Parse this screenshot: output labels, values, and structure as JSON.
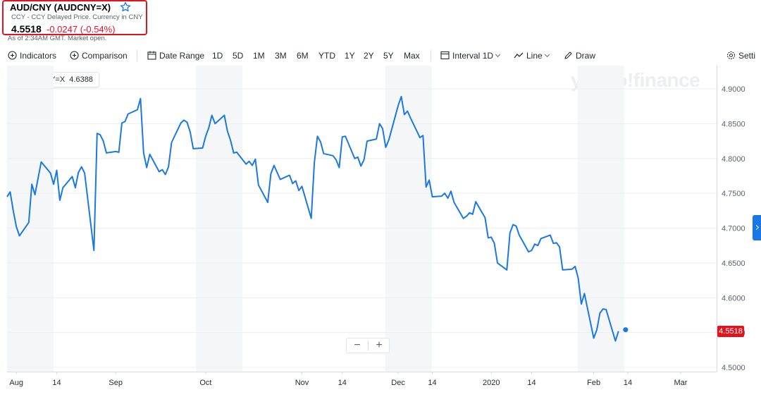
{
  "header": {
    "title": "AUD/CNY (AUDCNY=X)",
    "subtitle": "CCY - CCY Delayed Price. Currency in CNY",
    "price": "4.5518",
    "change": "-0.0247 (-0.54%)",
    "market_status": "As of 2:34AM GMT. Market open."
  },
  "toolbar": {
    "indicators": "Indicators",
    "comparison": "Comparison",
    "date_range": "Date Range",
    "ranges": [
      "1D",
      "5D",
      "1M",
      "3M",
      "6M",
      "YTD",
      "1Y",
      "2Y",
      "5Y",
      "Max"
    ],
    "interval_label": "Interval",
    "interval_value": "1D",
    "chart_type": "Line",
    "draw": "Draw",
    "settings": "Setti"
  },
  "legend": {
    "label": "AUDCNY=X",
    "value": "4.6388"
  },
  "watermark": "yahoo!finance",
  "current_price_flag": "4.5518",
  "zoom": {
    "minus": "−",
    "plus": "+"
  },
  "colors": {
    "line": "#1a78e6",
    "accent_red": "#e0141e",
    "shade": "#f5f6f7"
  },
  "chart_data": {
    "type": "line",
    "title": "",
    "xlabel": "",
    "ylabel": "",
    "ylim": [
      4.5,
      4.9
    ],
    "y_ticks": [
      "4.9000",
      "4.8500",
      "4.8000",
      "4.7500",
      "4.7000",
      "4.6500",
      "4.6000",
      "4.5500",
      "4.5000"
    ],
    "y_tick_values": [
      4.9,
      4.85,
      4.8,
      4.75,
      4.7,
      4.65,
      4.6,
      4.55,
      4.5
    ],
    "x_range": [
      "2019-07-29",
      "2020-03-12"
    ],
    "x_ticks": [
      {
        "label": "Aug",
        "date": "2019-08-01"
      },
      {
        "label": "14",
        "date": "2019-08-14"
      },
      {
        "label": "Sep",
        "date": "2019-09-02"
      },
      {
        "label": "Oct",
        "date": "2019-10-01"
      },
      {
        "label": "Nov",
        "date": "2019-11-01"
      },
      {
        "label": "14",
        "date": "2019-11-14"
      },
      {
        "label": "Dec",
        "date": "2019-12-02"
      },
      {
        "label": "14",
        "date": "2019-12-13"
      },
      {
        "label": "2020",
        "date": "2020-01-01"
      },
      {
        "label": "14",
        "date": "2020-01-14"
      },
      {
        "label": "Feb",
        "date": "2020-02-03"
      },
      {
        "label": "14",
        "date": "2020-02-14"
      },
      {
        "label": "Mar",
        "date": "2020-03-02"
      }
    ],
    "weekend_shading": true,
    "grid": true,
    "legend_position": "top-left",
    "series": [
      {
        "name": "AUDCNY=X",
        "points": [
          [
            "2019-07-29",
            4.745
          ],
          [
            "2019-07-30",
            4.752
          ],
          [
            "2019-07-31",
            4.725
          ],
          [
            "2019-08-01",
            4.702
          ],
          [
            "2019-08-02",
            4.689
          ],
          [
            "2019-08-05",
            4.708
          ],
          [
            "2019-08-06",
            4.763
          ],
          [
            "2019-08-07",
            4.748
          ],
          [
            "2019-08-08",
            4.772
          ],
          [
            "2019-08-09",
            4.795
          ],
          [
            "2019-08-12",
            4.779
          ],
          [
            "2019-08-13",
            4.763
          ],
          [
            "2019-08-14",
            4.783
          ],
          [
            "2019-08-15",
            4.74
          ],
          [
            "2019-08-16",
            4.758
          ],
          [
            "2019-08-19",
            4.774
          ],
          [
            "2019-08-20",
            4.758
          ],
          [
            "2019-08-21",
            4.78
          ],
          [
            "2019-08-22",
            4.788
          ],
          [
            "2019-08-23",
            4.779
          ],
          [
            "2019-08-26",
            4.668
          ],
          [
            "2019-08-27",
            4.836
          ],
          [
            "2019-08-28",
            4.834
          ],
          [
            "2019-08-29",
            4.825
          ],
          [
            "2019-08-30",
            4.808
          ],
          [
            "2019-09-02",
            4.81
          ],
          [
            "2019-09-03",
            4.809
          ],
          [
            "2019-09-04",
            4.851
          ],
          [
            "2019-09-05",
            4.853
          ],
          [
            "2019-09-06",
            4.864
          ],
          [
            "2019-09-09",
            4.87
          ],
          [
            "2019-09-10",
            4.886
          ],
          [
            "2019-09-11",
            4.808
          ],
          [
            "2019-09-12",
            4.787
          ],
          [
            "2019-09-13",
            4.806
          ],
          [
            "2019-09-16",
            4.781
          ],
          [
            "2019-09-17",
            4.784
          ],
          [
            "2019-09-18",
            4.777
          ],
          [
            "2019-09-19",
            4.788
          ],
          [
            "2019-09-20",
            4.823
          ],
          [
            "2019-09-23",
            4.851
          ],
          [
            "2019-09-24",
            4.855
          ],
          [
            "2019-09-25",
            4.852
          ],
          [
            "2019-09-26",
            4.838
          ],
          [
            "2019-09-27",
            4.814
          ],
          [
            "2019-09-30",
            4.815
          ],
          [
            "2019-10-01",
            4.832
          ],
          [
            "2019-10-02",
            4.844
          ],
          [
            "2019-10-03",
            4.862
          ],
          [
            "2019-10-04",
            4.85
          ],
          [
            "2019-10-07",
            4.862
          ],
          [
            "2019-10-08",
            4.839
          ],
          [
            "2019-10-09",
            4.826
          ],
          [
            "2019-10-10",
            4.808
          ],
          [
            "2019-10-11",
            4.809
          ],
          [
            "2019-10-14",
            4.792
          ],
          [
            "2019-10-15",
            4.796
          ],
          [
            "2019-10-16",
            4.79
          ],
          [
            "2019-10-17",
            4.799
          ],
          [
            "2019-10-18",
            4.762
          ],
          [
            "2019-10-21",
            4.737
          ],
          [
            "2019-10-22",
            4.778
          ],
          [
            "2019-10-23",
            4.79
          ],
          [
            "2019-10-24",
            4.78
          ],
          [
            "2019-10-25",
            4.77
          ],
          [
            "2019-10-28",
            4.776
          ],
          [
            "2019-10-29",
            4.764
          ],
          [
            "2019-10-30",
            4.768
          ],
          [
            "2019-10-31",
            4.754
          ],
          [
            "2019-11-01",
            4.76
          ],
          [
            "2019-11-04",
            4.714
          ],
          [
            "2019-11-05",
            4.794
          ],
          [
            "2019-11-06",
            4.832
          ],
          [
            "2019-11-07",
            4.824
          ],
          [
            "2019-11-08",
            4.807
          ],
          [
            "2019-11-11",
            4.804
          ],
          [
            "2019-11-12",
            4.798
          ],
          [
            "2019-11-13",
            4.787
          ],
          [
            "2019-11-14",
            4.831
          ],
          [
            "2019-11-15",
            4.832
          ],
          [
            "2019-11-18",
            4.8
          ],
          [
            "2019-11-19",
            4.802
          ],
          [
            "2019-11-20",
            4.789
          ],
          [
            "2019-11-21",
            4.798
          ],
          [
            "2019-11-22",
            4.825
          ],
          [
            "2019-11-25",
            4.828
          ],
          [
            "2019-11-26",
            4.85
          ],
          [
            "2019-11-27",
            4.843
          ],
          [
            "2019-11-28",
            4.816
          ],
          [
            "2019-11-29",
            4.827
          ],
          [
            "2019-12-02",
            4.876
          ],
          [
            "2019-12-03",
            4.889
          ],
          [
            "2019-12-04",
            4.863
          ],
          [
            "2019-12-05",
            4.868
          ],
          [
            "2019-12-06",
            4.858
          ],
          [
            "2019-12-09",
            4.83
          ],
          [
            "2019-12-10",
            4.833
          ],
          [
            "2019-12-11",
            4.759
          ],
          [
            "2019-12-12",
            4.769
          ],
          [
            "2019-12-13",
            4.745
          ],
          [
            "2019-12-16",
            4.746
          ],
          [
            "2019-12-17",
            4.75
          ],
          [
            "2019-12-18",
            4.743
          ],
          [
            "2019-12-19",
            4.753
          ],
          [
            "2019-12-20",
            4.737
          ],
          [
            "2019-12-23",
            4.714
          ],
          [
            "2019-12-24",
            4.717
          ],
          [
            "2019-12-25",
            4.722
          ],
          [
            "2019-12-26",
            4.72
          ],
          [
            "2019-12-27",
            4.738
          ],
          [
            "2019-12-30",
            4.715
          ],
          [
            "2019-12-31",
            4.686
          ],
          [
            "2020-01-01",
            4.687
          ],
          [
            "2020-01-02",
            4.678
          ],
          [
            "2020-01-03",
            4.65
          ],
          [
            "2020-01-06",
            4.64
          ],
          [
            "2020-01-07",
            4.693
          ],
          [
            "2020-01-08",
            4.705
          ],
          [
            "2020-01-09",
            4.703
          ],
          [
            "2020-01-10",
            4.69
          ],
          [
            "2020-01-13",
            4.666
          ],
          [
            "2020-01-14",
            4.668
          ],
          [
            "2020-01-15",
            4.677
          ],
          [
            "2020-01-16",
            4.675
          ],
          [
            "2020-01-17",
            4.685
          ],
          [
            "2020-01-20",
            4.69
          ],
          [
            "2020-01-21",
            4.678
          ],
          [
            "2020-01-22",
            4.679
          ],
          [
            "2020-01-23",
            4.673
          ],
          [
            "2020-01-24",
            4.64
          ],
          [
            "2020-01-27",
            4.641
          ],
          [
            "2020-01-28",
            4.645
          ],
          [
            "2020-01-29",
            4.628
          ],
          [
            "2020-01-30",
            4.591
          ],
          [
            "2020-01-31",
            4.606
          ],
          [
            "2020-02-03",
            4.542
          ],
          [
            "2020-02-04",
            4.554
          ],
          [
            "2020-02-05",
            4.578
          ],
          [
            "2020-02-06",
            4.584
          ],
          [
            "2020-02-07",
            4.583
          ],
          [
            "2020-02-10",
            4.538
          ],
          [
            "2020-02-11",
            4.552
          ]
        ]
      }
    ]
  }
}
